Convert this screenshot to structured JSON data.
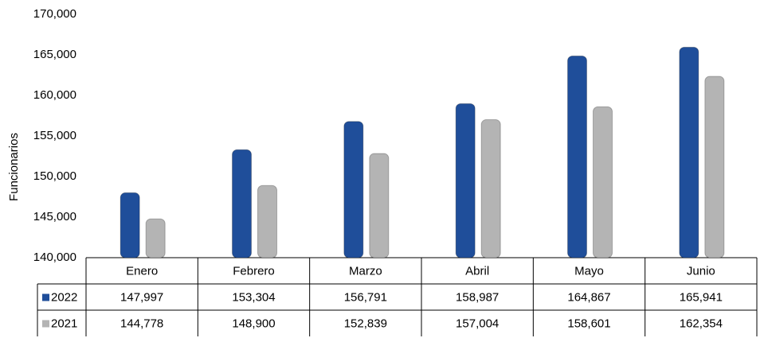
{
  "chart_data": {
    "type": "bar",
    "y_axis_label": "Funcionarios",
    "categories": [
      "Enero",
      "Febrero",
      "Marzo",
      "Abril",
      "Mayo",
      "Junio"
    ],
    "series": [
      {
        "name": "2022",
        "color": "#1f4e9a",
        "values": [
          147997,
          153304,
          156791,
          158987,
          164867,
          165941
        ],
        "value_labels": [
          "147,997",
          "153,304",
          "156,791",
          "158,987",
          "164,867",
          "165,941"
        ]
      },
      {
        "name": "2021",
        "color": "#b4b4b4",
        "values": [
          144778,
          148900,
          152839,
          157004,
          158601,
          162354
        ],
        "value_labels": [
          "144,778",
          "148,900",
          "152,839",
          "157,004",
          "158,601",
          "162,354"
        ]
      }
    ],
    "ylim": [
      140000,
      170000
    ],
    "yticks": [
      {
        "value": 140000,
        "label": "140,000"
      },
      {
        "value": 145000,
        "label": "145,000"
      },
      {
        "value": 150000,
        "label": "150,000"
      },
      {
        "value": 155000,
        "label": "155,000"
      },
      {
        "value": 160000,
        "label": "160,000"
      },
      {
        "value": 165000,
        "label": "165,000"
      },
      {
        "value": 170000,
        "label": "170,000"
      }
    ],
    "grid": false,
    "legend": "table"
  }
}
